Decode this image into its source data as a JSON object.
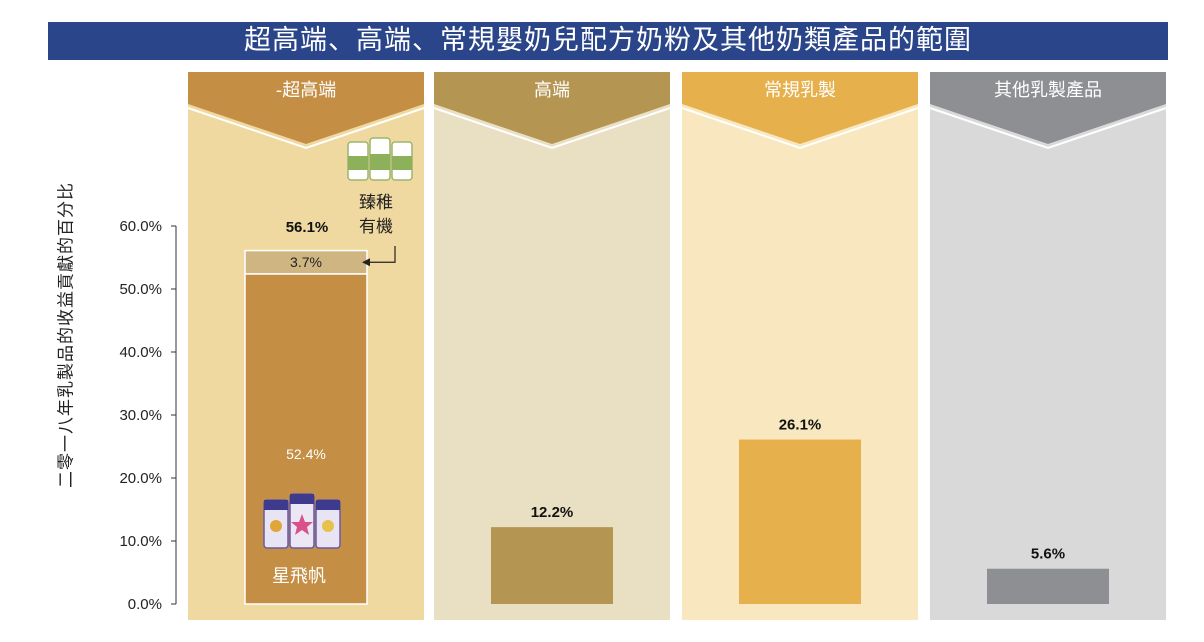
{
  "title": "超高端、高端、常規嬰奶兒配方奶粉及其他奶類產品的範圍",
  "colors": {
    "title_bg": "#2a4589",
    "super_premium_header": "#c48f45",
    "super_premium_bg": "#f0d9a0",
    "premium_header": "#b49552",
    "premium_bg": "#e9dfc3",
    "regular_header": "#e6b04c",
    "regular_bg": "#f8e7bf",
    "other_header": "#8e8f93",
    "other_bg": "#d9d9d9"
  },
  "chart_data": {
    "type": "bar",
    "ylabel": "二零一八年乳製品的收益貢獻的百分比",
    "ylim": [
      0,
      60
    ],
    "yticks": [
      "0.0%",
      "10.0%",
      "20.0%",
      "30.0%",
      "40.0%",
      "50.0%",
      "60.0%"
    ],
    "yticks_values": [
      0,
      10,
      20,
      30,
      40,
      50,
      60
    ],
    "categories": [
      "-超高端",
      "高端",
      "常規乳製",
      "其他乳製產品"
    ],
    "bars": [
      {
        "category": "-超高端",
        "total": 56.1,
        "total_label": "56.1%",
        "segments": [
          {
            "name": "星飛帆",
            "value": 52.4,
            "label": "52.4%",
            "color": "#c48f45",
            "text_color": "#ffffff"
          },
          {
            "name": "臻稚有機",
            "value": 3.7,
            "label": "3.7%",
            "color": "#cfb582",
            "text_color": "#222222"
          }
        ]
      },
      {
        "category": "高端",
        "total": 12.2,
        "total_label": "12.2%",
        "segments": [
          {
            "name": "",
            "value": 12.2,
            "label": "",
            "color": "#b49552",
            "text_color": "#ffffff"
          }
        ]
      },
      {
        "category": "常規乳製",
        "total": 26.1,
        "total_label": "26.1%",
        "segments": [
          {
            "name": "",
            "value": 26.1,
            "label": "",
            "color": "#e6b04c",
            "text_color": "#ffffff"
          }
        ]
      },
      {
        "category": "其他乳製產品",
        "total": 5.6,
        "total_label": "5.6%",
        "segments": [
          {
            "name": "",
            "value": 5.6,
            "label": "",
            "color": "#8e8f93",
            "text_color": "#ffffff"
          }
        ]
      }
    ],
    "annotations": {
      "organic_brand_line1": "臻稚",
      "organic_brand_line2": "有機",
      "main_brand": "星飛帆"
    }
  }
}
